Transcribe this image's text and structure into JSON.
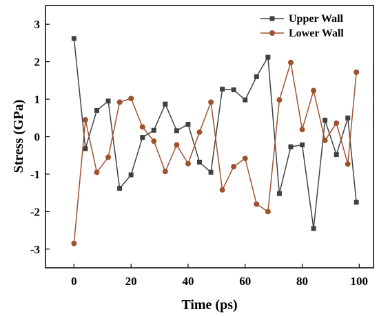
{
  "chart_data": {
    "type": "line",
    "xlabel": "Time (ps)",
    "ylabel": "Stress (GPa)",
    "xlim": [
      -10,
      105
    ],
    "ylim": [
      -3.5,
      3.5
    ],
    "xticks": [
      0,
      20,
      40,
      60,
      80,
      100
    ],
    "yticks": [
      -3,
      -2,
      -1,
      0,
      1,
      2,
      3
    ],
    "legend_position": "top-right",
    "grid": false,
    "x": [
      0,
      4,
      8,
      12,
      16,
      20,
      24,
      28,
      32,
      36,
      40,
      44,
      48,
      52,
      56,
      60,
      64,
      68,
      72,
      76,
      80,
      84,
      88,
      92,
      96,
      99
    ],
    "series": [
      {
        "name": "Upper Wall",
        "color": "#404040",
        "marker": "square",
        "values": [
          2.62,
          -0.32,
          0.7,
          0.95,
          -1.38,
          -1.02,
          -0.02,
          0.17,
          0.87,
          0.16,
          0.33,
          -0.68,
          -0.95,
          1.27,
          1.25,
          0.98,
          1.6,
          2.12,
          -1.52,
          -0.27,
          -0.22,
          -2.45,
          0.44,
          -0.48,
          0.5,
          -1.75
        ]
      },
      {
        "name": "Lower Wall",
        "color": "#a0522d",
        "marker": "circle",
        "values": [
          -2.85,
          0.45,
          -0.95,
          -0.55,
          0.92,
          1.02,
          0.26,
          -0.12,
          -0.93,
          -0.22,
          -0.72,
          0.12,
          0.92,
          -1.42,
          -0.8,
          -0.58,
          -1.8,
          -2.0,
          0.98,
          1.98,
          0.19,
          1.23,
          -0.1,
          0.36,
          -0.73,
          1.72
        ]
      }
    ]
  }
}
